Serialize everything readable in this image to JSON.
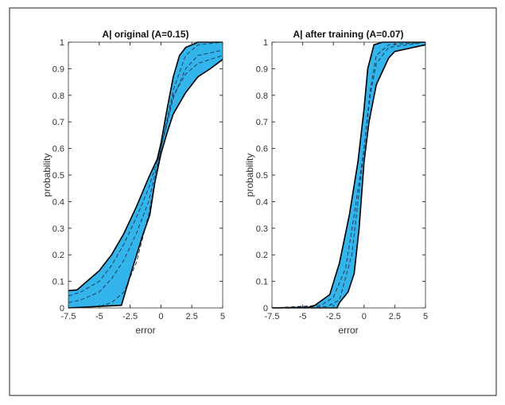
{
  "colors": {
    "band_fill": "#33b5ec",
    "boundary": "#000000",
    "median_dashed": "#1f3b5a"
  },
  "chart_data": [
    {
      "type": "area",
      "title": "A| original (A=0.15)",
      "xlabel": "error",
      "ylabel": "probability",
      "xlim": [
        -7.5,
        5
      ],
      "ylim": [
        0,
        1
      ],
      "xticks": [
        "-7.5",
        "-5",
        "-2.5",
        "0",
        "2.5",
        "5"
      ],
      "yticks": [
        "0",
        "0.1",
        "0.2",
        "0.3",
        "0.4",
        "0.5",
        "0.6",
        "0.7",
        "0.8",
        "0.9",
        "1"
      ],
      "grid": false,
      "upper": [
        [
          -7.5,
          0.065
        ],
        [
          -6.8,
          0.068
        ],
        [
          -6,
          0.1
        ],
        [
          -5,
          0.14
        ],
        [
          -4,
          0.2
        ],
        [
          -3,
          0.28
        ],
        [
          -2,
          0.38
        ],
        [
          -1,
          0.49
        ],
        [
          -0.3,
          0.56
        ],
        [
          0,
          0.62
        ],
        [
          0.5,
          0.75
        ],
        [
          1,
          0.87
        ],
        [
          1.5,
          0.95
        ],
        [
          2,
          0.98
        ],
        [
          3,
          1
        ],
        [
          5,
          1
        ]
      ],
      "lower": [
        [
          -7.5,
          0
        ],
        [
          -3.2,
          0.01
        ],
        [
          -2.5,
          0.12
        ],
        [
          -1.5,
          0.27
        ],
        [
          -0.9,
          0.35
        ],
        [
          -0.5,
          0.47
        ],
        [
          0,
          0.58
        ],
        [
          0.5,
          0.66
        ],
        [
          1,
          0.73
        ],
        [
          2,
          0.81
        ],
        [
          3,
          0.87
        ],
        [
          4,
          0.9
        ],
        [
          5,
          0.935
        ]
      ],
      "dashed": [
        [
          [
            -7.5,
            0.045
          ],
          [
            -6.5,
            0.06
          ],
          [
            -5,
            0.1
          ],
          [
            -4,
            0.16
          ],
          [
            -3,
            0.24
          ],
          [
            -2,
            0.34
          ],
          [
            -1,
            0.45
          ],
          [
            0,
            0.6
          ],
          [
            1,
            0.82
          ],
          [
            2,
            0.95
          ],
          [
            3,
            0.99
          ],
          [
            5,
            1
          ]
        ],
        [
          [
            -7.5,
            0.02
          ],
          [
            -6.5,
            0.03
          ],
          [
            -5,
            0.06
          ],
          [
            -4,
            0.11
          ],
          [
            -3,
            0.18
          ],
          [
            -2,
            0.28
          ],
          [
            -1,
            0.4
          ],
          [
            0,
            0.6
          ],
          [
            1,
            0.79
          ],
          [
            2,
            0.9
          ],
          [
            3,
            0.95
          ],
          [
            5,
            0.97
          ]
        ],
        [
          [
            -7.5,
            0
          ],
          [
            -5,
            0.005
          ],
          [
            -4,
            0.02
          ],
          [
            -3,
            0.06
          ],
          [
            -2,
            0.17
          ],
          [
            -1,
            0.35
          ],
          [
            0,
            0.6
          ],
          [
            1,
            0.8
          ],
          [
            2,
            0.88
          ],
          [
            3,
            0.92
          ],
          [
            5,
            0.95
          ]
        ]
      ]
    },
    {
      "type": "area",
      "title": "A| after training (A=0.07)",
      "xlabel": "error",
      "ylabel": "probability",
      "xlim": [
        -7.5,
        5
      ],
      "ylim": [
        0,
        1
      ],
      "xticks": [
        "-7.5",
        "-5",
        "-2.5",
        "0",
        "2.5",
        "5"
      ],
      "yticks": [
        "0",
        "0.1",
        "0.2",
        "0.3",
        "0.4",
        "0.5",
        "0.6",
        "0.7",
        "0.8",
        "0.9",
        "1"
      ],
      "grid": false,
      "upper": [
        [
          -7.5,
          0
        ],
        [
          -4.5,
          0.003
        ],
        [
          -4,
          0.01
        ],
        [
          -2.8,
          0.05
        ],
        [
          -2,
          0.17
        ],
        [
          -1.2,
          0.35
        ],
        [
          -0.5,
          0.55
        ],
        [
          0,
          0.75
        ],
        [
          0.3,
          0.9
        ],
        [
          0.8,
          0.99
        ],
        [
          1.5,
          1
        ],
        [
          5,
          1
        ]
      ],
      "lower": [
        [
          -7.5,
          0
        ],
        [
          -2.2,
          0
        ],
        [
          -2,
          0.02
        ],
        [
          -1.3,
          0.06
        ],
        [
          -0.8,
          0.13
        ],
        [
          -0.4,
          0.3
        ],
        [
          0,
          0.55
        ],
        [
          0.4,
          0.7
        ],
        [
          1,
          0.84
        ],
        [
          2,
          0.94
        ],
        [
          2.5,
          0.965
        ],
        [
          5,
          0.99
        ]
      ],
      "dashed": [
        [
          [
            -7.5,
            0
          ],
          [
            -3.5,
            0.01
          ],
          [
            -2.5,
            0.04
          ],
          [
            -1.5,
            0.15
          ],
          [
            -0.8,
            0.35
          ],
          [
            0,
            0.6
          ],
          [
            0.5,
            0.82
          ],
          [
            1,
            0.95
          ],
          [
            2,
            0.99
          ],
          [
            5,
            1
          ]
        ],
        [
          [
            -7.5,
            0
          ],
          [
            -3,
            0.005
          ],
          [
            -2,
            0.03
          ],
          [
            -1,
            0.2
          ],
          [
            -0.5,
            0.4
          ],
          [
            0,
            0.6
          ],
          [
            0.5,
            0.8
          ],
          [
            1,
            0.92
          ],
          [
            2,
            0.98
          ],
          [
            5,
            1
          ]
        ]
      ]
    }
  ]
}
